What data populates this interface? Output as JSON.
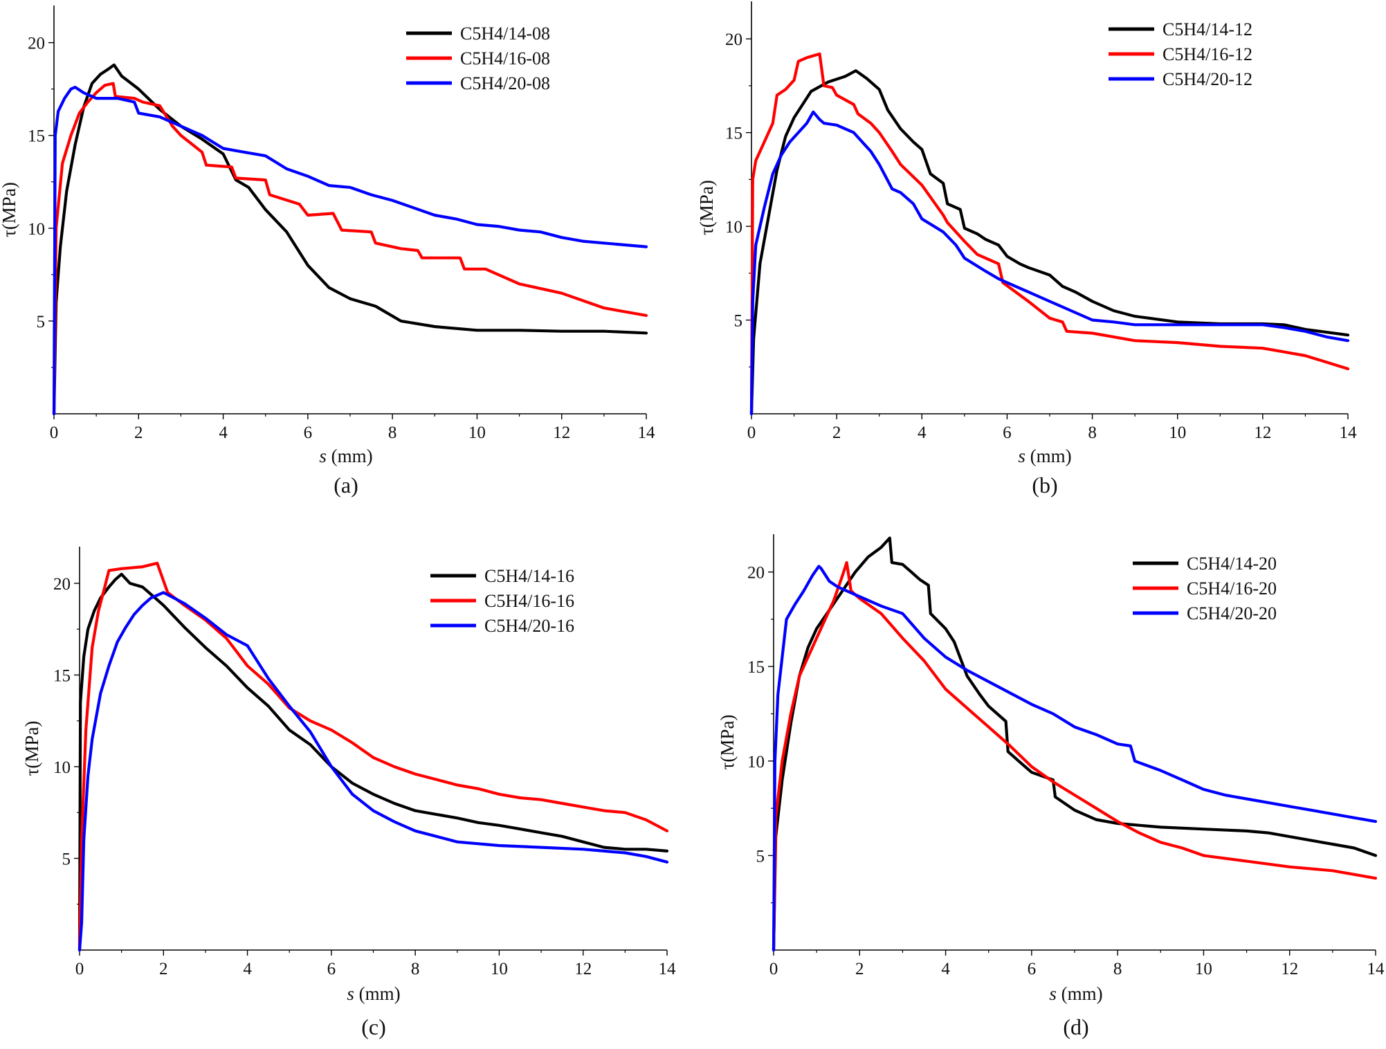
{
  "figure": {
    "y_axis_label": "τ(MPa)",
    "x_axis_label_var": "s",
    "x_axis_label_unit": " (mm)"
  },
  "colors": {
    "black": "#000000",
    "red": "#ff0000",
    "blue": "#0000ff"
  },
  "chart_data": [
    {
      "panel_label": "(a)",
      "type": "line",
      "xlabel": "s (mm)",
      "ylabel": "τ(MPa)",
      "xlim": [
        0,
        14
      ],
      "ylim": [
        0,
        22
      ],
      "xticks": [
        "0",
        "2",
        "4",
        "6",
        "8",
        "10",
        "12",
        "14"
      ],
      "yticks": [
        "5",
        "10",
        "15",
        "20"
      ],
      "legend_position": "top-right",
      "series": [
        {
          "name": "C5H4/14-08",
          "color": "#000000",
          "x": [
            0,
            0.05,
            0.15,
            0.3,
            0.5,
            0.7,
            0.9,
            1.1,
            1.3,
            1.42,
            1.6,
            2.0,
            2.5,
            3.0,
            3.5,
            4.0,
            4.3,
            4.6,
            5.0,
            5.5,
            6.0,
            6.5,
            7.0,
            7.6,
            8.2,
            9.0,
            10.0,
            11.0,
            12.0,
            13.0,
            14.0
          ],
          "y": [
            0,
            6,
            9,
            12,
            14.5,
            16.5,
            17.8,
            18.3,
            18.6,
            18.8,
            18.2,
            17.5,
            16.4,
            15.5,
            14.8,
            14.0,
            12.6,
            12.2,
            11.0,
            9.8,
            8.0,
            6.8,
            6.2,
            5.8,
            5.0,
            4.7,
            4.5,
            4.5,
            4.45,
            4.45,
            4.35
          ]
        },
        {
          "name": "C5H4/16-08",
          "color": "#ff0000",
          "x": [
            0,
            0.05,
            0.2,
            0.4,
            0.6,
            0.8,
            1.0,
            1.2,
            1.4,
            1.45,
            1.9,
            2.1,
            2.5,
            2.8,
            3.0,
            3.5,
            3.6,
            4.2,
            4.3,
            5.0,
            5.1,
            5.8,
            6.0,
            6.6,
            6.8,
            7.5,
            7.6,
            8.2,
            8.6,
            8.7,
            9.6,
            9.7,
            10.2,
            11.0,
            12.0,
            13.0,
            14.0
          ],
          "y": [
            0,
            10,
            13.5,
            15,
            16.2,
            16.8,
            17.3,
            17.7,
            17.8,
            17.1,
            17.0,
            16.8,
            16.6,
            15.5,
            15.0,
            14.1,
            13.4,
            13.3,
            12.7,
            12.6,
            11.8,
            11.3,
            10.7,
            10.8,
            9.9,
            9.8,
            9.2,
            8.9,
            8.8,
            8.4,
            8.4,
            7.8,
            7.8,
            7.0,
            6.5,
            5.7,
            5.3
          ]
        },
        {
          "name": "C5H4/20-08",
          "color": "#0000ff",
          "x": [
            0,
            0.03,
            0.1,
            0.25,
            0.4,
            0.5,
            0.7,
            1.0,
            1.5,
            1.9,
            2.0,
            2.5,
            3.0,
            3.5,
            4.0,
            4.5,
            5.0,
            5.5,
            6.0,
            6.5,
            7.0,
            7.5,
            8.0,
            8.5,
            9.0,
            9.5,
            10.0,
            10.5,
            11.0,
            11.5,
            12.0,
            12.5,
            13.0,
            13.5,
            14.0
          ],
          "y": [
            0,
            15,
            16.3,
            17.0,
            17.5,
            17.6,
            17.3,
            17.0,
            17.0,
            16.8,
            16.2,
            16.0,
            15.5,
            15.0,
            14.3,
            14.1,
            13.9,
            13.2,
            12.8,
            12.3,
            12.2,
            11.8,
            11.5,
            11.1,
            10.7,
            10.5,
            10.2,
            10.1,
            9.9,
            9.8,
            9.5,
            9.3,
            9.2,
            9.1,
            9.0
          ]
        }
      ]
    },
    {
      "panel_label": "(b)",
      "type": "line",
      "xlabel": "s (mm)",
      "ylabel": "τ(MPa)",
      "xlim": [
        0,
        14
      ],
      "ylim": [
        0,
        22
      ],
      "xticks": [
        "0",
        "2",
        "4",
        "6",
        "8",
        "10",
        "12",
        "14"
      ],
      "yticks": [
        "5",
        "10",
        "15",
        "20"
      ],
      "legend_position": "top-right",
      "series": [
        {
          "name": "C5H4/14-12",
          "color": "#000000",
          "x": [
            0,
            0.05,
            0.2,
            0.4,
            0.6,
            0.8,
            1.0,
            1.2,
            1.4,
            1.8,
            2.2,
            2.45,
            2.7,
            3.0,
            3.2,
            3.5,
            3.8,
            4.0,
            4.2,
            4.5,
            4.6,
            4.9,
            5.0,
            5.3,
            5.5,
            5.8,
            6.0,
            6.3,
            6.5,
            7.0,
            7.3,
            7.6,
            8.0,
            8.5,
            9.0,
            10.0,
            11.0,
            12.0,
            12.5,
            13.0,
            14.0
          ],
          "y": [
            0,
            4,
            8,
            10.5,
            13,
            14.8,
            15.8,
            16.5,
            17.2,
            17.7,
            18.0,
            18.3,
            17.9,
            17.3,
            16.2,
            15.2,
            14.5,
            14.1,
            12.8,
            12.3,
            11.2,
            10.9,
            9.9,
            9.6,
            9.3,
            9.0,
            8.4,
            8.0,
            7.8,
            7.4,
            6.8,
            6.5,
            6.0,
            5.5,
            5.2,
            4.9,
            4.8,
            4.8,
            4.75,
            4.5,
            4.2
          ]
        },
        {
          "name": "C5H4/16-12",
          "color": "#ff0000",
          "x": [
            0,
            0.03,
            0.1,
            0.3,
            0.5,
            0.6,
            0.8,
            1.0,
            1.1,
            1.3,
            1.6,
            1.7,
            1.9,
            2.0,
            2.4,
            2.5,
            2.8,
            3.0,
            3.3,
            3.5,
            4.0,
            4.5,
            4.6,
            5.0,
            5.3,
            5.8,
            5.9,
            6.5,
            7.0,
            7.3,
            7.4,
            8.0,
            9.0,
            10.0,
            11.0,
            12.0,
            12.5,
            13.0,
            14.0
          ],
          "y": [
            0,
            12.5,
            13.5,
            14.5,
            15.5,
            17.0,
            17.3,
            17.8,
            18.8,
            19.0,
            19.2,
            17.5,
            17.4,
            17.0,
            16.5,
            16.0,
            15.5,
            15.0,
            14.0,
            13.3,
            12.2,
            10.6,
            10.2,
            9.2,
            8.5,
            8.0,
            7.0,
            6.0,
            5.1,
            4.9,
            4.4,
            4.3,
            3.9,
            3.8,
            3.6,
            3.5,
            3.3,
            3.1,
            2.4
          ]
        },
        {
          "name": "C5H4/20-12",
          "color": "#0000ff",
          "x": [
            0,
            0.03,
            0.1,
            0.3,
            0.5,
            0.7,
            0.9,
            1.1,
            1.3,
            1.45,
            1.6,
            1.7,
            2.0,
            2.4,
            2.6,
            2.8,
            3.0,
            3.3,
            3.5,
            3.8,
            4.0,
            4.5,
            4.8,
            5.0,
            5.5,
            5.8,
            6.0,
            6.5,
            7.0,
            7.5,
            8.0,
            8.5,
            9.0,
            10.0,
            11.0,
            12.0,
            12.5,
            13.0,
            13.5,
            14.0
          ],
          "y": [
            0,
            6,
            9,
            11,
            12.8,
            13.8,
            14.5,
            15.0,
            15.5,
            16.1,
            15.7,
            15.5,
            15.4,
            15.0,
            14.5,
            14.0,
            13.3,
            12.0,
            11.8,
            11.2,
            10.4,
            9.7,
            9.0,
            8.3,
            7.6,
            7.2,
            7.0,
            6.5,
            6.0,
            5.5,
            5.0,
            4.9,
            4.75,
            4.75,
            4.75,
            4.75,
            4.6,
            4.4,
            4.1,
            3.9
          ]
        }
      ]
    },
    {
      "panel_label": "(c)",
      "type": "line",
      "xlabel": "s (mm)",
      "ylabel": "τ(MPa)",
      "xlim": [
        0,
        14
      ],
      "ylim": [
        0,
        22
      ],
      "xticks": [
        "0",
        "2",
        "4",
        "6",
        "8",
        "10",
        "12",
        "14"
      ],
      "yticks": [
        "5",
        "10",
        "15",
        "20"
      ],
      "legend_position": "top-right",
      "series": [
        {
          "name": "C5H4/14-16",
          "color": "#000000",
          "x": [
            0,
            0.02,
            0.1,
            0.2,
            0.35,
            0.5,
            0.7,
            0.85,
            1.0,
            1.2,
            1.5,
            1.8,
            2.0,
            2.5,
            3.0,
            3.5,
            4.0,
            4.5,
            5.0,
            5.5,
            6.0,
            6.5,
            7.0,
            7.5,
            8.0,
            8.5,
            9.0,
            9.5,
            10.0,
            10.5,
            11.0,
            11.5,
            12.0,
            12.5,
            13.0,
            13.5,
            14.0
          ],
          "y": [
            0,
            13.5,
            16,
            17.5,
            18.5,
            19.2,
            19.8,
            20.2,
            20.5,
            20.0,
            19.8,
            19.2,
            18.8,
            17.6,
            16.5,
            15.5,
            14.3,
            13.3,
            12.0,
            11.2,
            10.0,
            9.1,
            8.5,
            8.0,
            7.6,
            7.4,
            7.2,
            6.95,
            6.8,
            6.6,
            6.4,
            6.2,
            5.9,
            5.6,
            5.5,
            5.5,
            5.4
          ]
        },
        {
          "name": "C5H4/16-16",
          "color": "#ff0000",
          "x": [
            0,
            0.05,
            0.15,
            0.3,
            0.45,
            0.6,
            0.7,
            1.0,
            1.5,
            1.85,
            2.1,
            2.5,
            3.0,
            3.5,
            4.0,
            4.5,
            5.0,
            5.5,
            6.0,
            6.5,
            7.0,
            7.5,
            8.0,
            8.5,
            9.0,
            9.5,
            10.0,
            10.5,
            11.0,
            11.5,
            12.0,
            12.5,
            13.0,
            13.5,
            14.0
          ],
          "y": [
            0,
            6,
            12,
            16.5,
            18.5,
            19.8,
            20.7,
            20.8,
            20.9,
            21.1,
            19.5,
            18.8,
            18.0,
            17.0,
            15.5,
            14.5,
            13.2,
            12.5,
            12.0,
            11.3,
            10.5,
            10.0,
            9.6,
            9.3,
            9.0,
            8.8,
            8.5,
            8.3,
            8.2,
            8.0,
            7.8,
            7.6,
            7.5,
            7.1,
            6.5
          ]
        },
        {
          "name": "C5H4/20-16",
          "color": "#0000ff",
          "x": [
            0,
            0.05,
            0.1,
            0.2,
            0.3,
            0.5,
            0.7,
            0.9,
            1.1,
            1.3,
            1.5,
            1.7,
            1.9,
            2.0,
            2.5,
            3.0,
            3.5,
            4.0,
            4.5,
            5.0,
            5.5,
            6.0,
            6.5,
            7.0,
            7.5,
            8.0,
            8.5,
            9.0,
            10.0,
            11.0,
            12.0,
            12.5,
            13.0,
            13.5,
            14.0
          ],
          "y": [
            0,
            1.5,
            6,
            9.5,
            11.5,
            14.0,
            15.5,
            16.8,
            17.6,
            18.3,
            18.8,
            19.2,
            19.4,
            19.5,
            18.9,
            18.1,
            17.2,
            16.6,
            14.8,
            13.3,
            11.9,
            10.0,
            8.5,
            7.6,
            7.0,
            6.5,
            6.2,
            5.9,
            5.7,
            5.6,
            5.5,
            5.4,
            5.3,
            5.1,
            4.8
          ]
        }
      ]
    },
    {
      "panel_label": "(d)",
      "type": "line",
      "xlabel": "s (mm)",
      "ylabel": "τ(MPa)",
      "xlim": [
        0,
        14
      ],
      "ylim": [
        0,
        22
      ],
      "xticks": [
        "0",
        "2",
        "4",
        "6",
        "8",
        "10",
        "12",
        "14"
      ],
      "yticks": [
        "5",
        "10",
        "15",
        "20"
      ],
      "legend_position": "top-right",
      "series": [
        {
          "name": "C5H4/14-20",
          "color": "#000000",
          "x": [
            0,
            0.05,
            0.2,
            0.4,
            0.6,
            0.8,
            1.0,
            1.3,
            1.6,
            1.9,
            2.2,
            2.5,
            2.7,
            2.75,
            3.0,
            3.2,
            3.4,
            3.6,
            3.65,
            4.0,
            4.2,
            4.5,
            4.8,
            5.0,
            5.2,
            5.4,
            5.45,
            5.8,
            6.0,
            6.5,
            6.55,
            7.0,
            7.5,
            8.0,
            9.0,
            10.0,
            11.0,
            11.5,
            12.0,
            13.0,
            13.5,
            14.0
          ],
          "y": [
            0,
            6,
            9,
            12,
            14.5,
            16.0,
            17.0,
            18.0,
            19.0,
            20.0,
            20.8,
            21.3,
            21.8,
            20.5,
            20.4,
            20.0,
            19.6,
            19.3,
            17.8,
            17.0,
            16.3,
            14.5,
            13.5,
            12.9,
            12.5,
            12.1,
            10.5,
            9.8,
            9.4,
            9.0,
            8.1,
            7.4,
            6.9,
            6.7,
            6.5,
            6.4,
            6.3,
            6.2,
            6.0,
            5.6,
            5.4,
            5.0
          ]
        },
        {
          "name": "C5H4/16-20",
          "color": "#ff0000",
          "x": [
            0,
            0.05,
            0.2,
            0.4,
            0.6,
            0.8,
            1.0,
            1.2,
            1.4,
            1.6,
            1.7,
            1.8,
            2.0,
            2.5,
            3.0,
            3.5,
            4.0,
            4.5,
            5.0,
            5.5,
            6.0,
            6.5,
            7.0,
            7.5,
            8.0,
            8.5,
            9.0,
            9.5,
            10.0,
            11.0,
            12.0,
            13.0,
            14.0
          ],
          "y": [
            0,
            7,
            10,
            12.5,
            14.5,
            15.5,
            16.5,
            17.5,
            18.5,
            19.8,
            20.5,
            19.0,
            18.6,
            17.8,
            16.5,
            15.3,
            13.8,
            12.8,
            11.8,
            10.8,
            9.7,
            8.9,
            8.2,
            7.5,
            6.8,
            6.2,
            5.7,
            5.4,
            5.0,
            4.7,
            4.4,
            4.2,
            3.8
          ]
        },
        {
          "name": "C5H4/20-20",
          "color": "#0000ff",
          "x": [
            0,
            0.03,
            0.1,
            0.2,
            0.3,
            0.5,
            0.7,
            0.9,
            1.05,
            1.1,
            1.3,
            1.5,
            2.0,
            2.5,
            3.0,
            3.5,
            4.0,
            4.5,
            5.0,
            5.5,
            6.0,
            6.5,
            7.0,
            7.5,
            8.0,
            8.3,
            8.4,
            9.0,
            9.5,
            10.0,
            10.5,
            11.0,
            11.5,
            12.0,
            12.5,
            13.0,
            13.5,
            14.0
          ],
          "y": [
            0,
            10,
            13.5,
            15.5,
            17.5,
            18.3,
            19.0,
            19.8,
            20.3,
            20.2,
            19.5,
            19.2,
            18.7,
            18.2,
            17.8,
            16.5,
            15.5,
            14.8,
            14.2,
            13.6,
            13.0,
            12.5,
            11.8,
            11.4,
            10.9,
            10.8,
            10.0,
            9.5,
            9.0,
            8.5,
            8.2,
            8.0,
            7.8,
            7.6,
            7.4,
            7.2,
            7.0,
            6.8
          ]
        }
      ]
    }
  ]
}
